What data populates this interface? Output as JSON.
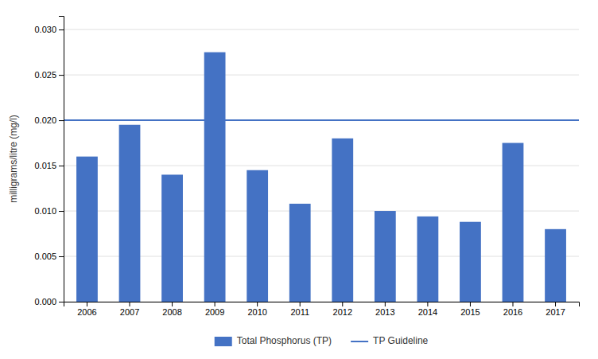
{
  "chart_data": {
    "type": "bar",
    "categories": [
      "2006",
      "2007",
      "2008",
      "2009",
      "2010",
      "2011",
      "2012",
      "2013",
      "2014",
      "2015",
      "2016",
      "2017"
    ],
    "series": [
      {
        "name": "Total Phosphorus (TP)",
        "type": "bar",
        "color": "#4472C4",
        "values": [
          0.016,
          0.0195,
          0.014,
          0.0275,
          0.0145,
          0.0108,
          0.018,
          0.01,
          0.0094,
          0.0088,
          0.0175,
          0.008
        ]
      }
    ],
    "guideline": {
      "name": "TP Guideline",
      "value": 0.02,
      "color": "#4472C4"
    },
    "y_label": "milligrams/litre (mg/l)",
    "ylim": [
      0,
      0.0315
    ],
    "yticks": [
      {
        "value": 0.0,
        "label": "0.000"
      },
      {
        "value": 0.005,
        "label": "0.005"
      },
      {
        "value": 0.01,
        "label": "0.010"
      },
      {
        "value": 0.015,
        "label": "0.015"
      },
      {
        "value": 0.02,
        "label": "0.020"
      },
      {
        "value": 0.025,
        "label": "0.025"
      },
      {
        "value": 0.03,
        "label": "0.030"
      }
    ],
    "grid": true,
    "legend": "bottom"
  }
}
